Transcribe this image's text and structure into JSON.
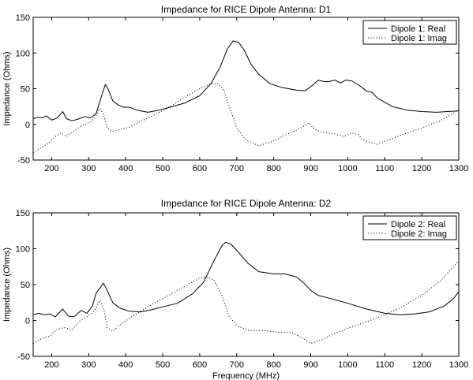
{
  "chart_data": [
    {
      "type": "line",
      "title": "Impedance for RICE Dipole Antenna: D1",
      "xlabel": "",
      "ylabel": "Impedance (Ohms)",
      "xlim": [
        150,
        1300
      ],
      "ylim": [
        -50,
        150
      ],
      "xticks": [
        200,
        300,
        400,
        500,
        600,
        700,
        800,
        900,
        1000,
        1100,
        1200,
        1300
      ],
      "yticks": [
        -50,
        0,
        50,
        100,
        150
      ],
      "legend_position": "top-right",
      "series": [
        {
          "name": "Dipole 1: Real",
          "style": "solid",
          "points": [
            [
              150,
              8
            ],
            [
              165,
              10
            ],
            [
              175,
              9
            ],
            [
              185,
              12
            ],
            [
              200,
              6
            ],
            [
              215,
              9
            ],
            [
              230,
              18
            ],
            [
              240,
              8
            ],
            [
              255,
              5
            ],
            [
              270,
              7
            ],
            [
              290,
              11
            ],
            [
              305,
              9
            ],
            [
              320,
              15
            ],
            [
              335,
              40
            ],
            [
              345,
              56
            ],
            [
              352,
              50
            ],
            [
              365,
              33
            ],
            [
              380,
              27
            ],
            [
              395,
              24
            ],
            [
              410,
              24
            ],
            [
              430,
              20
            ],
            [
              460,
              17
            ],
            [
              490,
              20
            ],
            [
              520,
              24
            ],
            [
              560,
              30
            ],
            [
              600,
              40
            ],
            [
              630,
              57
            ],
            [
              655,
              80
            ],
            [
              675,
              106
            ],
            [
              690,
              117
            ],
            [
              705,
              115
            ],
            [
              720,
              104
            ],
            [
              740,
              83
            ],
            [
              760,
              70
            ],
            [
              790,
              57
            ],
            [
              820,
              52
            ],
            [
              860,
              48
            ],
            [
              885,
              47
            ],
            [
              905,
              55
            ],
            [
              920,
              62
            ],
            [
              935,
              60
            ],
            [
              950,
              60
            ],
            [
              965,
              62
            ],
            [
              980,
              58
            ],
            [
              995,
              62
            ],
            [
              1010,
              61
            ],
            [
              1030,
              55
            ],
            [
              1050,
              47
            ],
            [
              1065,
              45
            ],
            [
              1080,
              37
            ],
            [
              1120,
              25
            ],
            [
              1160,
              20
            ],
            [
              1200,
              18
            ],
            [
              1240,
              17
            ],
            [
              1270,
              18
            ],
            [
              1300,
              19
            ]
          ]
        },
        {
          "name": "Dipole 1: Imag",
          "style": "dotted",
          "points": [
            [
              150,
              -40
            ],
            [
              170,
              -33
            ],
            [
              190,
              -27
            ],
            [
              210,
              -17
            ],
            [
              225,
              -12
            ],
            [
              240,
              -17
            ],
            [
              255,
              -11
            ],
            [
              275,
              -4
            ],
            [
              290,
              0
            ],
            [
              305,
              3
            ],
            [
              320,
              12
            ],
            [
              330,
              22
            ],
            [
              340,
              14
            ],
            [
              350,
              -5
            ],
            [
              365,
              -10
            ],
            [
              385,
              -7
            ],
            [
              410,
              -4
            ],
            [
              440,
              4
            ],
            [
              480,
              14
            ],
            [
              520,
              25
            ],
            [
              560,
              38
            ],
            [
              600,
              50
            ],
            [
              630,
              57
            ],
            [
              650,
              57
            ],
            [
              665,
              48
            ],
            [
              680,
              25
            ],
            [
              700,
              -5
            ],
            [
              725,
              -22
            ],
            [
              760,
              -30
            ],
            [
              800,
              -23
            ],
            [
              840,
              -13
            ],
            [
              870,
              -6
            ],
            [
              895,
              2
            ],
            [
              910,
              -7
            ],
            [
              930,
              -11
            ],
            [
              960,
              -13
            ],
            [
              990,
              -17
            ],
            [
              1010,
              -12
            ],
            [
              1030,
              -15
            ],
            [
              1040,
              -22
            ],
            [
              1060,
              -25
            ],
            [
              1080,
              -28
            ],
            [
              1110,
              -22
            ],
            [
              1150,
              -14
            ],
            [
              1200,
              -5
            ],
            [
              1250,
              5
            ],
            [
              1300,
              20
            ]
          ]
        }
      ]
    },
    {
      "type": "line",
      "title": "Impedance for RICE Dipole Antenna: D2",
      "xlabel": "Frequency (MHz)",
      "ylabel": "Impedance (Ohms)",
      "xlim": [
        150,
        1300
      ],
      "ylim": [
        -50,
        150
      ],
      "xticks": [
        200,
        300,
        400,
        500,
        600,
        700,
        800,
        900,
        1000,
        1100,
        1200,
        1300
      ],
      "yticks": [
        -50,
        0,
        50,
        100,
        150
      ],
      "legend_position": "top-right",
      "series": [
        {
          "name": "Dipole 2: Real",
          "style": "solid",
          "points": [
            [
              150,
              8
            ],
            [
              165,
              10
            ],
            [
              180,
              8
            ],
            [
              195,
              9
            ],
            [
              210,
              5
            ],
            [
              230,
              16
            ],
            [
              245,
              6
            ],
            [
              260,
              5
            ],
            [
              280,
              14
            ],
            [
              295,
              10
            ],
            [
              310,
              20
            ],
            [
              320,
              38
            ],
            [
              330,
              45
            ],
            [
              340,
              52
            ],
            [
              350,
              42
            ],
            [
              365,
              25
            ],
            [
              385,
              17
            ],
            [
              410,
              13
            ],
            [
              440,
              12
            ],
            [
              470,
              15
            ],
            [
              500,
              19
            ],
            [
              540,
              24
            ],
            [
              580,
              37
            ],
            [
              610,
              53
            ],
            [
              640,
              85
            ],
            [
              660,
              104
            ],
            [
              670,
              109
            ],
            [
              685,
              106
            ],
            [
              705,
              95
            ],
            [
              730,
              80
            ],
            [
              760,
              68
            ],
            [
              800,
              65
            ],
            [
              830,
              65
            ],
            [
              860,
              61
            ],
            [
              880,
              53
            ],
            [
              900,
              42
            ],
            [
              920,
              35
            ],
            [
              950,
              31
            ],
            [
              1000,
              24
            ],
            [
              1050,
              16
            ],
            [
              1100,
              10
            ],
            [
              1140,
              8
            ],
            [
              1180,
              9
            ],
            [
              1220,
              12
            ],
            [
              1260,
              20
            ],
            [
              1285,
              30
            ],
            [
              1300,
              40
            ]
          ]
        },
        {
          "name": "Dipole 2: Imag",
          "style": "dotted",
          "points": [
            [
              150,
              -32
            ],
            [
              170,
              -26
            ],
            [
              195,
              -22
            ],
            [
              215,
              -12
            ],
            [
              235,
              -10
            ],
            [
              255,
              -13
            ],
            [
              275,
              -1
            ],
            [
              295,
              5
            ],
            [
              315,
              13
            ],
            [
              330,
              28
            ],
            [
              340,
              18
            ],
            [
              350,
              -10
            ],
            [
              365,
              -15
            ],
            [
              385,
              -6
            ],
            [
              410,
              3
            ],
            [
              440,
              13
            ],
            [
              480,
              25
            ],
            [
              520,
              36
            ],
            [
              560,
              48
            ],
            [
              600,
              59
            ],
            [
              625,
              60
            ],
            [
              640,
              55
            ],
            [
              660,
              35
            ],
            [
              680,
              5
            ],
            [
              700,
              -7
            ],
            [
              730,
              -14
            ],
            [
              770,
              -14
            ],
            [
              810,
              -16
            ],
            [
              850,
              -17
            ],
            [
              880,
              -25
            ],
            [
              900,
              -32
            ],
            [
              930,
              -27
            ],
            [
              960,
              -19
            ],
            [
              1000,
              -11
            ],
            [
              1050,
              -2
            ],
            [
              1100,
              8
            ],
            [
              1150,
              20
            ],
            [
              1200,
              35
            ],
            [
              1250,
              55
            ],
            [
              1300,
              83
            ]
          ]
        }
      ]
    }
  ]
}
